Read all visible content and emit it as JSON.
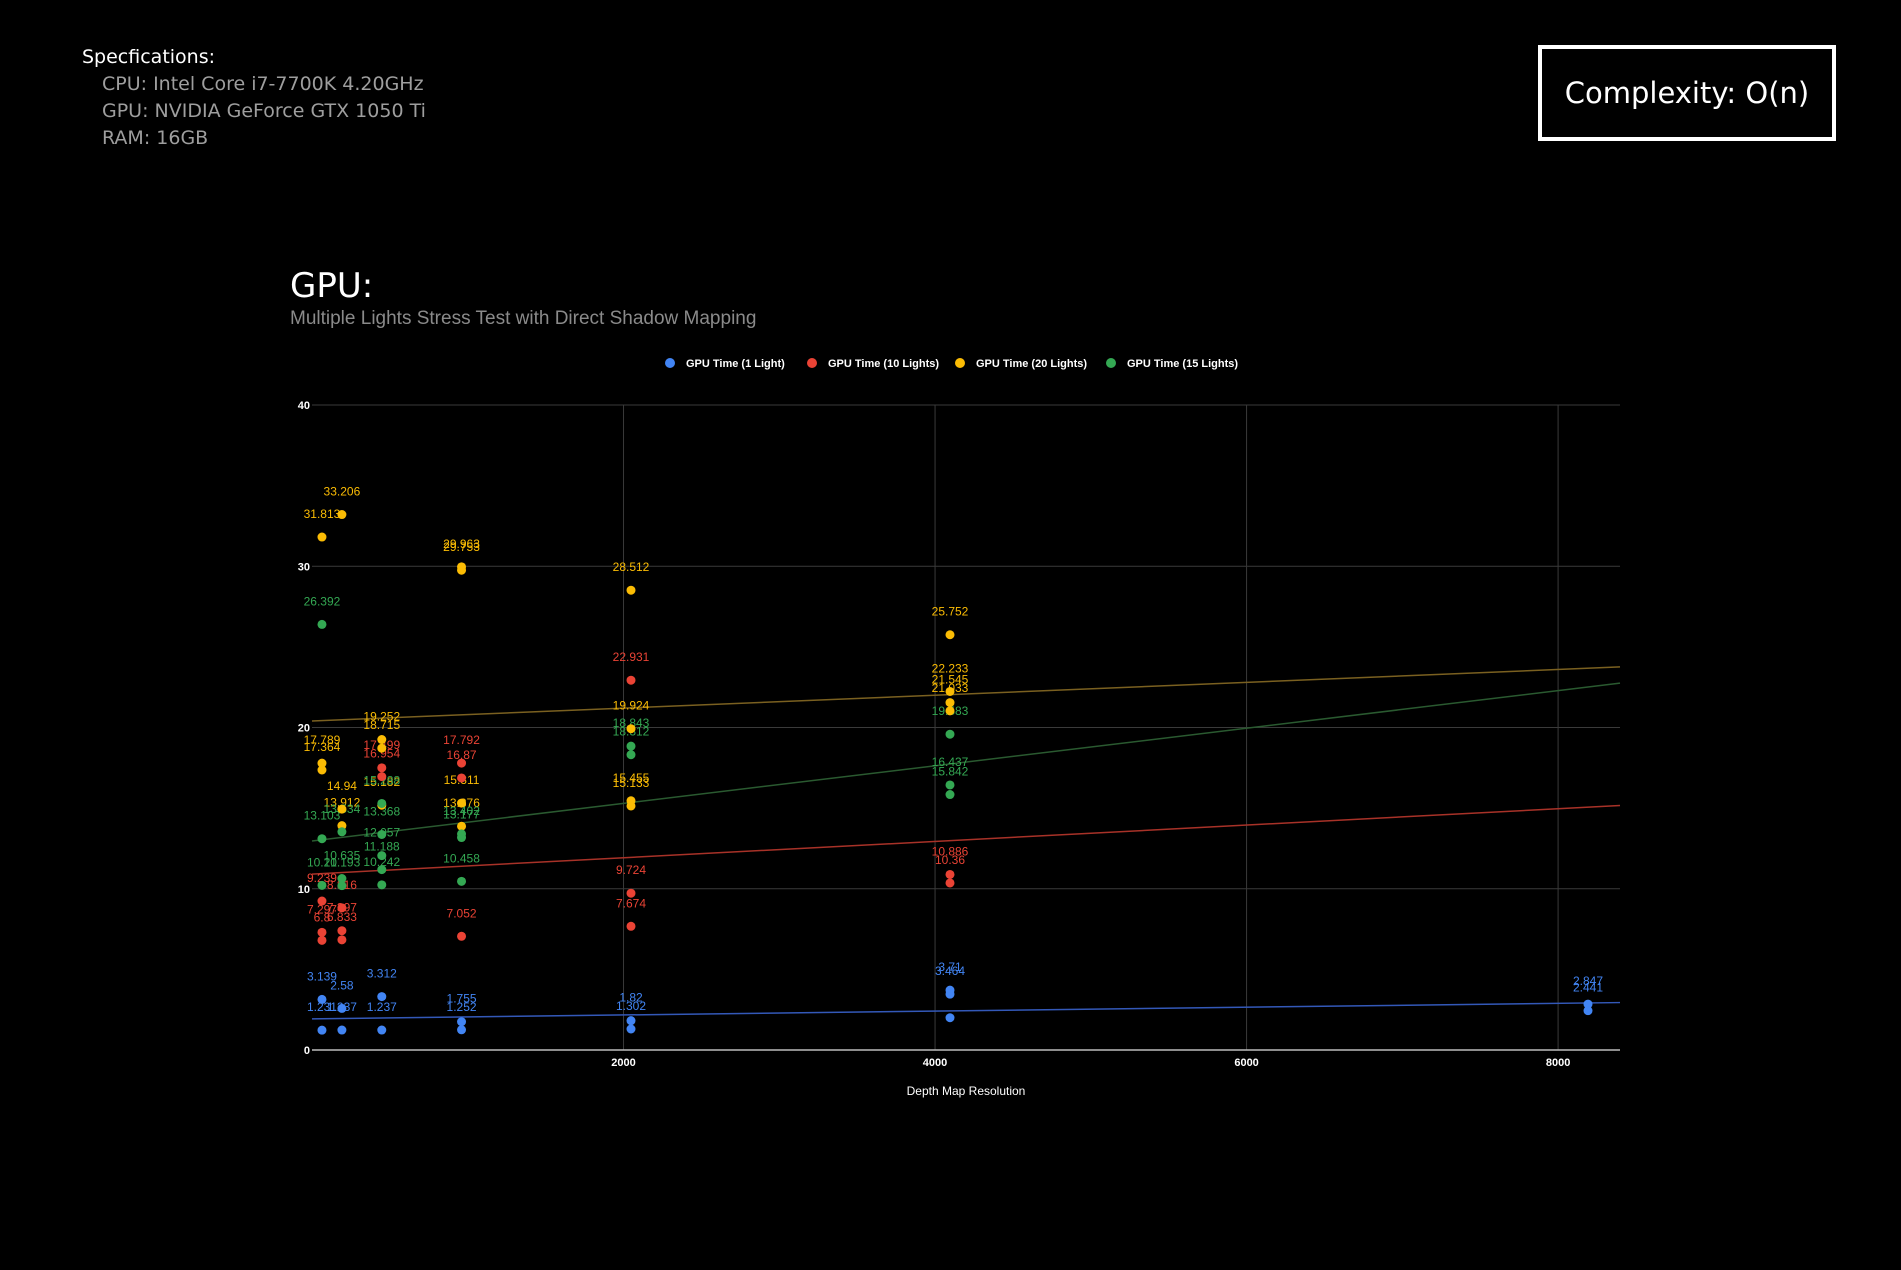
{
  "specs": {
    "title": "Specfications:",
    "cpu": "CPU: Intel Core i7-7700K 4.20GHz",
    "gpu": "GPU: NVIDIA GeForce GTX 1050 Ti",
    "ram": "RAM: 16GB"
  },
  "complexity": "Complexity: O(n)",
  "chart_data": {
    "type": "scatter",
    "title": "GPU:",
    "subtitle": "Multiple Lights Stress Test with Direct Shadow Mapping",
    "xlabel": "Depth Map Resolution",
    "ylabel": "",
    "xlim": [
      0,
      8192
    ],
    "ylim": [
      0,
      40
    ],
    "xticks": [
      2000,
      4000,
      6000,
      8000
    ],
    "yticks": [
      0,
      10,
      20,
      30,
      40
    ],
    "grid": true,
    "legend_position": "top",
    "trendlines": "linear",
    "series": [
      {
        "name": "GPU Time (1 Light)",
        "color": "#4285f4",
        "points": [
          {
            "x": 64,
            "y": 3.139,
            "label": "3.139"
          },
          {
            "x": 64,
            "y": 1.231,
            "label": "1.231"
          },
          {
            "x": 192,
            "y": 2.58,
            "label": "2.58"
          },
          {
            "x": 192,
            "y": 1.237,
            "label": "1.237"
          },
          {
            "x": 448,
            "y": 3.312,
            "label": "3.312"
          },
          {
            "x": 448,
            "y": 1.237,
            "label": "1.237"
          },
          {
            "x": 960,
            "y": 1.755,
            "label": "1.755"
          },
          {
            "x": 960,
            "y": 1.252,
            "label": "1.252"
          },
          {
            "x": 2048,
            "y": 1.82,
            "label": "1.82"
          },
          {
            "x": 2048,
            "y": 1.302,
            "label": "1.302"
          },
          {
            "x": 4096,
            "y": 3.71,
            "label": "3.71"
          },
          {
            "x": 4096,
            "y": 3.464,
            "label": "3.464"
          },
          {
            "x": 4096,
            "y": 2.0,
            "label": ""
          },
          {
            "x": 8192,
            "y": 2.847,
            "label": "2.847"
          },
          {
            "x": 8192,
            "y": 2.441,
            "label": "2.441"
          }
        ]
      },
      {
        "name": "GPU Time (10 Lights)",
        "color": "#ea4335",
        "points": [
          {
            "x": 64,
            "y": 9.239,
            "label": "9.239"
          },
          {
            "x": 64,
            "y": 7.297,
            "label": "7.297"
          },
          {
            "x": 64,
            "y": 6.8,
            "label": "6.8"
          },
          {
            "x": 192,
            "y": 8.816,
            "label": "8.816"
          },
          {
            "x": 192,
            "y": 7.397,
            "label": "7.397"
          },
          {
            "x": 192,
            "y": 6.833,
            "label": "6.833"
          },
          {
            "x": 448,
            "y": 17.499,
            "label": "17.499"
          },
          {
            "x": 448,
            "y": 16.954,
            "label": "16.954"
          },
          {
            "x": 960,
            "y": 17.792,
            "label": "17.792"
          },
          {
            "x": 960,
            "y": 16.87,
            "label": "16.87"
          },
          {
            "x": 960,
            "y": 7.052,
            "label": "7.052"
          },
          {
            "x": 2048,
            "y": 22.931,
            "label": "22.931"
          },
          {
            "x": 2048,
            "y": 9.724,
            "label": "9.724"
          },
          {
            "x": 2048,
            "y": 7.674,
            "label": "7.674"
          },
          {
            "x": 4096,
            "y": 10.886,
            "label": "10.886"
          },
          {
            "x": 4096,
            "y": 10.36,
            "label": "10.36"
          }
        ]
      },
      {
        "name": "GPU Time (20 Lights)",
        "color": "#fbbc04",
        "points": [
          {
            "x": 64,
            "y": 31.813,
            "label": "31.813"
          },
          {
            "x": 64,
            "y": 17.789,
            "label": "17.789"
          },
          {
            "x": 64,
            "y": 17.364,
            "label": "17.364"
          },
          {
            "x": 192,
            "y": 33.206,
            "label": "33.206"
          },
          {
            "x": 192,
            "y": 14.94,
            "label": "14.94"
          },
          {
            "x": 192,
            "y": 13.912,
            "label": "13.912"
          },
          {
            "x": 448,
            "y": 19.252,
            "label": "19.252"
          },
          {
            "x": 448,
            "y": 18.715,
            "label": "18.715"
          },
          {
            "x": 448,
            "y": 15.182,
            "label": "15.182"
          },
          {
            "x": 960,
            "y": 29.963,
            "label": "29.963"
          },
          {
            "x": 960,
            "y": 29.753,
            "label": "29.753"
          },
          {
            "x": 960,
            "y": 15.311,
            "label": "15.311"
          },
          {
            "x": 960,
            "y": 13.876,
            "label": "13.876"
          },
          {
            "x": 2048,
            "y": 28.512,
            "label": "28.512"
          },
          {
            "x": 2048,
            "y": 19.924,
            "label": "19.924"
          },
          {
            "x": 2048,
            "y": 15.455,
            "label": "15.455"
          },
          {
            "x": 2048,
            "y": 15.133,
            "label": "15.133"
          },
          {
            "x": 4096,
            "y": 25.752,
            "label": "25.752"
          },
          {
            "x": 4096,
            "y": 22.233,
            "label": "22.233"
          },
          {
            "x": 4096,
            "y": 21.545,
            "label": "21.545"
          },
          {
            "x": 4096,
            "y": 21.033,
            "label": "21.033"
          }
        ]
      },
      {
        "name": "GPU Time (15 Lights)",
        "color": "#34a853",
        "points": [
          {
            "x": 64,
            "y": 26.392,
            "label": "26.392"
          },
          {
            "x": 64,
            "y": 13.103,
            "label": "13.103"
          },
          {
            "x": 64,
            "y": 10.21,
            "label": "10.21"
          },
          {
            "x": 192,
            "y": 13.534,
            "label": "13.534"
          },
          {
            "x": 192,
            "y": 10.635,
            "label": "10.635"
          },
          {
            "x": 192,
            "y": 10.193,
            "label": "10.193"
          },
          {
            "x": 448,
            "y": 15.288,
            "label": "15.288"
          },
          {
            "x": 448,
            "y": 13.368,
            "label": "13.368"
          },
          {
            "x": 448,
            "y": 12.057,
            "label": "12.057"
          },
          {
            "x": 448,
            "y": 11.188,
            "label": "11.188"
          },
          {
            "x": 448,
            "y": 10.242,
            "label": "10.242"
          },
          {
            "x": 960,
            "y": 13.402,
            "label": "13.402"
          },
          {
            "x": 960,
            "y": 13.177,
            "label": "13.177"
          },
          {
            "x": 960,
            "y": 10.458,
            "label": "10.458"
          },
          {
            "x": 2048,
            "y": 18.843,
            "label": "18.843"
          },
          {
            "x": 2048,
            "y": 18.312,
            "label": "18.312"
          },
          {
            "x": 4096,
            "y": 19.583,
            "label": "19.583"
          },
          {
            "x": 4096,
            "y": 16.437,
            "label": "16.437"
          },
          {
            "x": 4096,
            "y": 15.842,
            "label": "15.842"
          }
        ]
      }
    ]
  }
}
